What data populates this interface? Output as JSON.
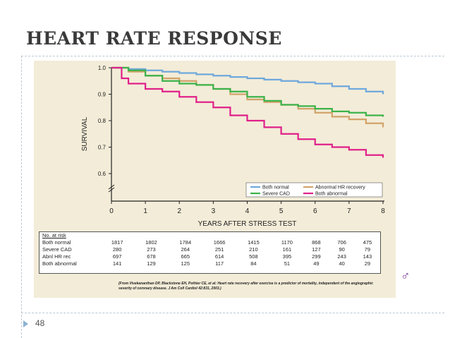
{
  "slide": {
    "title": "HEART RATE RESPONSE",
    "number": "48",
    "citation": "(From Vivekananthan DP, Blackstone EH, Pothier CE, et al: Heart rate recovery after exercise is a predictor of mortality, independent of the angiographic severity of coronary disease. J Am Coll Cardiol 42:831, 2003.)",
    "logo_glyph": "♂",
    "colors": {
      "panel": "#f3ecd8",
      "both_normal": "#6fa8dc",
      "abnormal_hr": "#d2a36a",
      "severe_cad": "#3cb24a",
      "both_abnormal": "#e0208a"
    }
  },
  "chart_data": {
    "type": "line",
    "title": "",
    "xlabel": "YEARS AFTER STRESS TEST",
    "ylabel": "SURVIVAL",
    "xlim": [
      0,
      8
    ],
    "ylim": [
      0.6,
      1.0
    ],
    "xticks": [
      0,
      1,
      2,
      3,
      4,
      5,
      6,
      7,
      8
    ],
    "yticks": [
      0.6,
      0.7,
      0.8,
      0.9,
      1.0
    ],
    "ytick_labels": [
      "0.6",
      "0.7",
      "0.8",
      "0.9",
      "1.0"
    ],
    "grid": false,
    "legend_position": "bottom-right",
    "series": [
      {
        "name": "Both normal",
        "color": "#6fa8dc",
        "points": [
          [
            0,
            1.0
          ],
          [
            0.5,
            0.995
          ],
          [
            1,
            0.99
          ],
          [
            1.5,
            0.985
          ],
          [
            2,
            0.98
          ],
          [
            2.5,
            0.975
          ],
          [
            3,
            0.97
          ],
          [
            3.5,
            0.965
          ],
          [
            4,
            0.96
          ],
          [
            4.5,
            0.955
          ],
          [
            5,
            0.95
          ],
          [
            5.5,
            0.945
          ],
          [
            6,
            0.94
          ],
          [
            6.5,
            0.93
          ],
          [
            7,
            0.92
          ],
          [
            7.5,
            0.91
          ],
          [
            8,
            0.9
          ]
        ]
      },
      {
        "name": "Abnormal HR recovery",
        "color": "#d2a36a",
        "points": [
          [
            0,
            1.0
          ],
          [
            0.5,
            0.985
          ],
          [
            1,
            0.97
          ],
          [
            1.5,
            0.96
          ],
          [
            2,
            0.95
          ],
          [
            2.5,
            0.935
          ],
          [
            3,
            0.92
          ],
          [
            3.5,
            0.9
          ],
          [
            4,
            0.88
          ],
          [
            4.5,
            0.87
          ],
          [
            5,
            0.86
          ],
          [
            5.5,
            0.845
          ],
          [
            6,
            0.83
          ],
          [
            6.5,
            0.815
          ],
          [
            7,
            0.805
          ],
          [
            7.5,
            0.79
          ],
          [
            8,
            0.775
          ]
        ]
      },
      {
        "name": "Severe CAD",
        "color": "#3cb24a",
        "points": [
          [
            0,
            1.0
          ],
          [
            0.5,
            0.99
          ],
          [
            1,
            0.97
          ],
          [
            1.5,
            0.95
          ],
          [
            2,
            0.94
          ],
          [
            2.5,
            0.935
          ],
          [
            3,
            0.92
          ],
          [
            3.5,
            0.91
          ],
          [
            4,
            0.89
          ],
          [
            4.5,
            0.875
          ],
          [
            5,
            0.86
          ],
          [
            5.5,
            0.855
          ],
          [
            6,
            0.845
          ],
          [
            6.5,
            0.835
          ],
          [
            7,
            0.83
          ],
          [
            7.5,
            0.82
          ],
          [
            8,
            0.815
          ]
        ]
      },
      {
        "name": "Both abnormal",
        "color": "#e0208a",
        "points": [
          [
            0,
            1.0
          ],
          [
            0.3,
            0.96
          ],
          [
            0.5,
            0.94
          ],
          [
            1,
            0.92
          ],
          [
            1.5,
            0.91
          ],
          [
            2,
            0.89
          ],
          [
            2.5,
            0.87
          ],
          [
            3,
            0.85
          ],
          [
            3.5,
            0.82
          ],
          [
            4,
            0.8
          ],
          [
            4.5,
            0.775
          ],
          [
            5,
            0.75
          ],
          [
            5.5,
            0.73
          ],
          [
            6,
            0.71
          ],
          [
            6.5,
            0.7
          ],
          [
            7,
            0.69
          ],
          [
            7.5,
            0.67
          ],
          [
            8,
            0.66
          ]
        ]
      }
    ],
    "legend": [
      {
        "label": "Both normal",
        "color": "#6fa8dc"
      },
      {
        "label": "Abnormal HR recovery",
        "color": "#d2a36a"
      },
      {
        "label": "Severe CAD",
        "color": "#3cb24a"
      },
      {
        "label": "Both abnormal",
        "color": "#e0208a"
      }
    ],
    "risk_table": {
      "header": "No. at risk",
      "rows": [
        {
          "label": "Both normal",
          "values": [
            "1817",
            "1802",
            "1784",
            "1666",
            "1415",
            "1170",
            "868",
            "706",
            "475"
          ]
        },
        {
          "label": "Severe CAD",
          "values": [
            "280",
            "273",
            "264",
            "251",
            "210",
            "161",
            "127",
            "90",
            "79"
          ]
        },
        {
          "label": "Abnl HR rec",
          "values": [
            "697",
            "678",
            "665",
            "614",
            "508",
            "395",
            "299",
            "243",
            "143"
          ]
        },
        {
          "label": "Both abnormal",
          "values": [
            "141",
            "129",
            "125",
            "117",
            "84",
            "51",
            "49",
            "40",
            "29"
          ]
        }
      ]
    }
  }
}
